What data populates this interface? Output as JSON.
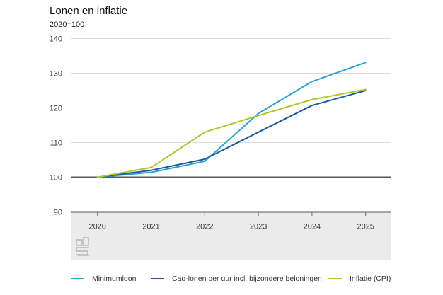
{
  "header": {
    "title": "Lonen en inflatie",
    "subtitle": "2020=100"
  },
  "chart_data": {
    "type": "line",
    "title": "Lonen en inflatie",
    "subtitle": "2020=100",
    "x": [
      2020,
      2021,
      2022,
      2023,
      2024,
      2025
    ],
    "series": [
      {
        "name": "Minimumloon",
        "color": "#2aa3d6",
        "values": [
          100,
          101.4,
          104.6,
          118.4,
          127.6,
          133.1
        ]
      },
      {
        "name": "Cao-lonen per uur incl. bijzondere beloningen",
        "color": "#1e5a9d",
        "values": [
          100,
          102.0,
          105.2,
          113.0,
          120.7,
          125.0
        ]
      },
      {
        "name": "Inflatie (CPI)",
        "color": "#aec72d",
        "values": [
          100,
          102.8,
          113.0,
          117.8,
          122.4,
          125.3
        ]
      }
    ],
    "ylim": [
      90,
      140
    ],
    "yticks": [
      90,
      100,
      110,
      120,
      130,
      140
    ],
    "baseline_value": 100,
    "grid": true,
    "legend_position": "bottom",
    "colors": {
      "axis_dark": "#57575a",
      "gridline": "#dcdcdc",
      "tick": "#707070",
      "tick_label": "#3c3c3c",
      "footer_band": "#ebebeb",
      "logo_gray": "#b8b8b8"
    }
  },
  "footer": {
    "logo": "cbs-logo"
  }
}
